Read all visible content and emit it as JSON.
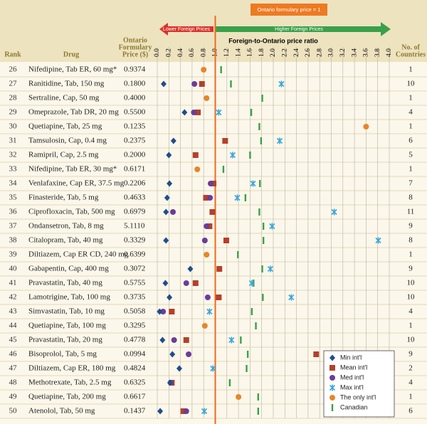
{
  "chart_data": {
    "type": "dot",
    "x_label": "Foreign-to-Ontario price ratio",
    "reference": {
      "value": 1,
      "label": "Ontario formulary price = 1"
    },
    "arrow_labels": {
      "left": "Lower Foreign Prices",
      "right": "Higher Foreign Prices"
    },
    "rank_header": "Rank",
    "drug_header": "Drug",
    "price_header": [
      "Ontario",
      "Formulary",
      "Price ($)"
    ],
    "countries_header": [
      "No. of",
      "Countries"
    ],
    "ranks": [
      26,
      27,
      28,
      29,
      30,
      31,
      32,
      33,
      34,
      35,
      36,
      37,
      38,
      39,
      40,
      41,
      42,
      43,
      44,
      45,
      46,
      47,
      48,
      49,
      50
    ],
    "categories": [
      "Nifedipine, Tab ER, 60 mg*",
      "Ranitidine, Tab, 150 mg",
      "Sertraline, Cap, 50 mg",
      "Omeprazole, Tab DR, 20 mg",
      "Quetiapine, Tab, 25 mg",
      "Tamsulosin, Cap, 0.4 mg",
      "Ramipril, Cap, 2.5 mg",
      "Nifedipine, Tab ER, 30 mg*",
      "Venlafaxine, Cap ER, 37.5 mg",
      "Finasteride, Tab, 5 mg",
      "Ciprofloxacin, Tab, 500 mg",
      "Ondansetron, Tab, 8 mg",
      "Citalopram, Tab, 40 mg",
      "Diltiazem, Cap ER CD, 240 mg",
      "Gabapentin, Cap, 400 mg",
      "Pravastatin, Tab, 40 mg",
      "Lamotrigine, Tab, 100 mg",
      "Simvastatin, Tab, 10 mg",
      "Quetiapine, Tab, 100 mg",
      "Pravastatin, Tab, 20 mg",
      "Bisoprolol, Tab, 5 mg",
      "Diltiazem, Cap ER, 180 mg",
      "Methotrexate, Tab, 2.5 mg",
      "Quetiapine, Tab, 200 mg",
      "Atenolol, Tab, 50 mg"
    ],
    "prices": [
      "0.9374",
      "0.1800",
      "0.4000",
      "0.5500",
      "0.1235",
      "0.2375",
      "0.2000",
      "0.6171",
      "0.2206",
      "0.4633",
      "0.6979",
      "5.1110",
      "0.3329",
      "0.6399",
      "0.3072",
      "0.5755",
      "0.3735",
      "0.5058",
      "0.3295",
      "0.4778",
      "0.0994",
      "0.4824",
      "0.6325",
      "0.6617",
      "0.1437"
    ],
    "countries": [
      1,
      10,
      1,
      4,
      1,
      6,
      5,
      1,
      7,
      8,
      11,
      9,
      8,
      1,
      9,
      10,
      10,
      4,
      1,
      10,
      9,
      2,
      4,
      1,
      6
    ],
    "xlim": [
      0,
      4
    ],
    "xticks": [
      {
        "value": 0,
        "label": "0.0"
      },
      0.2,
      0.4,
      0.6,
      0.8,
      {
        "value": 1,
        "label": "1.0"
      },
      1.2,
      1.4,
      1.6,
      1.8,
      {
        "value": 2,
        "label": "2.0"
      },
      2.2,
      2.4,
      2.6,
      2.8,
      {
        "value": 3,
        "label": "3.0"
      },
      3.2,
      3.4,
      3.6,
      3.8,
      {
        "value": 4,
        "label": "4.0"
      }
    ],
    "series": [
      {
        "name": "Min int'l",
        "marker": "diamond",
        "color": "#1f4e8c",
        "values": [
          null,
          0.11,
          null,
          0.47,
          null,
          0.28,
          0.2,
          null,
          0.21,
          0.17,
          0.15,
          null,
          0.15,
          null,
          0.57,
          0.14,
          0.21,
          0.04,
          null,
          0.09,
          0.26,
          0.38,
          0.22,
          null,
          0.05
        ]
      },
      {
        "name": "Mean int'l",
        "marker": "square",
        "color": "#b5402a",
        "values": [
          null,
          0.77,
          null,
          0.7,
          null,
          1.17,
          0.66,
          null,
          0.97,
          0.84,
          0.95,
          0.9,
          1.19,
          null,
          1.07,
          0.66,
          1.06,
          0.25,
          null,
          0.5,
          2.74,
          null,
          0.25,
          null,
          0.45
        ]
      },
      {
        "name": "Med int'l",
        "marker": "circle",
        "color": "#6a3d9a",
        "values": [
          null,
          0.64,
          null,
          0.63,
          null,
          null,
          null,
          null,
          0.92,
          0.91,
          0.27,
          0.85,
          0.82,
          null,
          null,
          0.5,
          0.87,
          0.1,
          null,
          0.29,
          0.54,
          null,
          0.23,
          null,
          0.5
        ]
      },
      {
        "name": "Max int'l",
        "marker": "x",
        "color": "#3aa6dc",
        "values": [
          null,
          2.14,
          null,
          1.06,
          null,
          2.11,
          1.3,
          null,
          1.65,
          1.38,
          3.05,
          1.98,
          3.81,
          null,
          1.95,
          1.63,
          2.31,
          0.9,
          null,
          1.28,
          null,
          0.96,
          null,
          null,
          0.81
        ]
      },
      {
        "name": "The only int'l",
        "marker": "circle",
        "color": "#e8852a",
        "values": [
          0.8,
          null,
          0.85,
          null,
          3.6,
          null,
          null,
          0.69,
          null,
          null,
          null,
          null,
          null,
          0.85,
          null,
          null,
          null,
          null,
          0.82,
          null,
          null,
          null,
          null,
          1.4,
          null
        ]
      },
      {
        "name": "Canadian",
        "marker": "bar",
        "color": "#3aa04a",
        "values": [
          1.1,
          1.27,
          1.81,
          1.62,
          1.76,
          1.79,
          1.6,
          1.14,
          1.77,
          1.52,
          1.76,
          1.83,
          1.83,
          1.39,
          1.81,
          1.66,
          1.82,
          1.63,
          1.7,
          1.44,
          1.56,
          1.54,
          1.25,
          1.74,
          1.74
        ]
      }
    ]
  }
}
